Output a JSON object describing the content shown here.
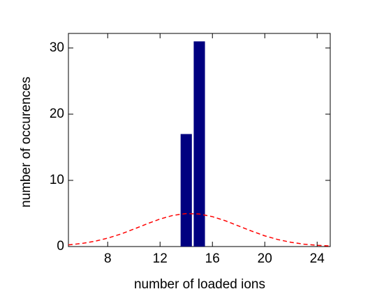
{
  "chart_data": {
    "type": "bar",
    "xlabel": "number of loaded ions",
    "ylabel": "number of occurences",
    "x": [
      14,
      15
    ],
    "values": [
      17,
      31
    ],
    "color": "#000080",
    "xlim": [
      5,
      25
    ],
    "xticks": [
      8,
      12,
      16,
      20,
      24
    ],
    "ylim": [
      0,
      32.2
    ],
    "yticks": [
      0,
      10,
      20,
      30
    ],
    "fit": {
      "type": "line",
      "color": "#ff0000",
      "dashed": true,
      "x": [
        5,
        6,
        7,
        8,
        9,
        10,
        11,
        12,
        13,
        14,
        15,
        16,
        17,
        18,
        19,
        20,
        21,
        22,
        23,
        24,
        25
      ],
      "values": [
        0.25,
        0.46,
        0.79,
        1.27,
        1.89,
        2.64,
        3.43,
        4.16,
        4.72,
        4.98,
        4.92,
        4.52,
        3.89,
        3.11,
        2.33,
        1.62,
        1.06,
        0.64,
        0.36,
        0.19,
        0.09
      ]
    }
  }
}
